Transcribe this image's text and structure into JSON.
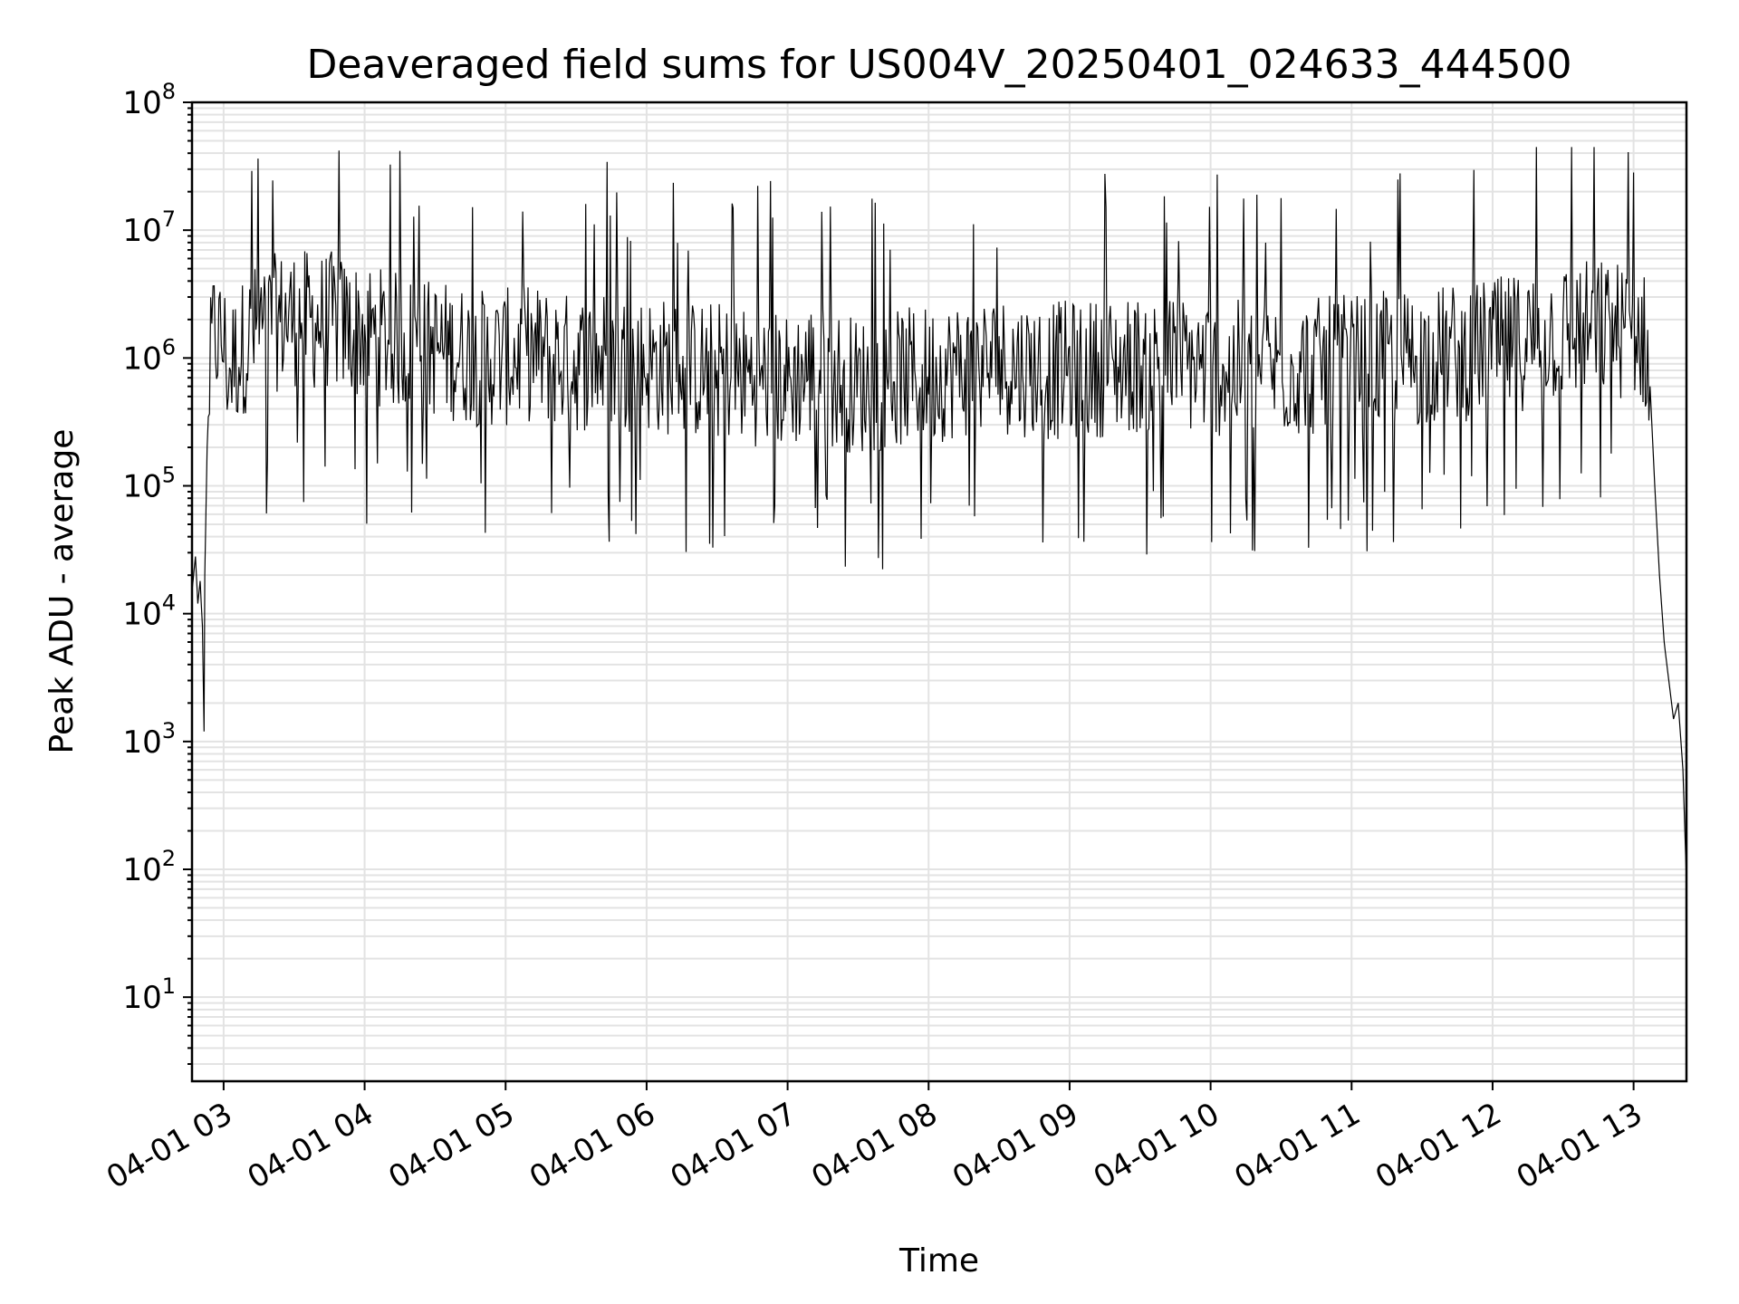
{
  "chart_data": {
    "type": "line",
    "title": "Deaveraged field sums for US004V_20250401_024633_444500",
    "xlabel": "Time",
    "ylabel": "Peak ADU - average",
    "yscale": "log",
    "ylim": [
      2.2,
      100000000
    ],
    "xlim": [
      "2025-04-01 02:46:33",
      "2025-04-01 13:22:30"
    ],
    "grid": true,
    "line_color": "#000000",
    "x_ticks": [
      "04-01 03",
      "04-01 04",
      "04-01 05",
      "04-01 06",
      "04-01 07",
      "04-01 08",
      "04-01 09",
      "04-01 10",
      "04-01 11",
      "04-01 12",
      "04-01 13"
    ],
    "y_ticks": [
      {
        "base": "10",
        "exp": "1",
        "value": 10
      },
      {
        "base": "10",
        "exp": "2",
        "value": 100
      },
      {
        "base": "10",
        "exp": "3",
        "value": 1000
      },
      {
        "base": "10",
        "exp": "4",
        "value": 10000
      },
      {
        "base": "10",
        "exp": "5",
        "value": 100000
      },
      {
        "base": "10",
        "exp": "6",
        "value": 1000000
      },
      {
        "base": "10",
        "exp": "7",
        "value": 10000000
      },
      {
        "base": "10",
        "exp": "8",
        "value": 100000000
      }
    ],
    "series": [
      {
        "x": [
          "2025-04-01 02:46:33",
          "2025-04-01 02:48:00",
          "2025-04-01 02:49:00",
          "2025-04-01 02:50:00",
          "2025-04-01 02:51:00",
          "2025-04-01 02:51:40",
          "2025-04-01 02:52:00",
          "2025-04-01 02:53:00",
          "2025-04-01 02:54:00",
          "2025-04-01 02:55:00",
          "2025-04-01 02:56:00",
          "2025-04-01 02:58:00",
          "2025-04-01 03:00:00",
          "2025-04-01 03:02:00",
          "2025-04-01 03:05:00",
          "2025-04-01 03:08:00",
          "2025-04-01 03:12:00",
          "2025-04-01 03:16:00",
          "2025-04-01 03:20:00",
          "2025-04-01 03:25:00",
          "2025-04-01 03:30:00",
          "2025-04-01 03:35:00",
          "2025-04-01 03:40:00",
          "2025-04-01 03:45:00",
          "2025-04-01 03:50:00",
          "2025-04-01 03:55:00",
          "2025-04-01 04:00:00",
          "2025-04-01 04:10:00",
          "2025-04-01 04:20:00",
          "2025-04-01 04:30:00",
          "2025-04-01 04:40:00",
          "2025-04-01 04:50:00",
          "2025-04-01 05:00:00",
          "2025-04-01 05:10:00",
          "2025-04-01 05:20:00",
          "2025-04-01 05:30:00",
          "2025-04-01 05:40:00",
          "2025-04-01 05:50:00",
          "2025-04-01 06:00:00",
          "2025-04-01 06:10:00",
          "2025-04-01 06:20:00",
          "2025-04-01 06:30:00",
          "2025-04-01 06:40:00",
          "2025-04-01 06:50:00",
          "2025-04-01 07:00:00",
          "2025-04-01 07:10:00",
          "2025-04-01 07:20:00",
          "2025-04-01 07:30:00",
          "2025-04-01 07:40:00",
          "2025-04-01 07:50:00",
          "2025-04-01 08:00:00",
          "2025-04-01 08:10:00",
          "2025-04-01 08:20:00",
          "2025-04-01 08:30:00",
          "2025-04-01 08:40:00",
          "2025-04-01 08:50:00",
          "2025-04-01 09:00:00",
          "2025-04-01 09:15:00",
          "2025-04-01 09:30:00",
          "2025-04-01 09:45:00",
          "2025-04-01 10:00:00",
          "2025-04-01 10:15:00",
          "2025-04-01 10:30:00",
          "2025-04-01 10:45:00",
          "2025-04-01 11:00:00",
          "2025-04-01 11:15:00",
          "2025-04-01 11:30:00",
          "2025-04-01 11:45:00",
          "2025-04-01 12:00:00",
          "2025-04-01 12:10:00",
          "2025-04-01 12:20:00",
          "2025-04-01 12:30:00",
          "2025-04-01 12:40:00",
          "2025-04-01 12:50:00",
          "2025-04-01 13:00:00",
          "2025-04-01 13:03:00",
          "2025-04-01 13:05:00",
          "2025-04-01 13:07:00",
          "2025-04-01 13:09:00",
          "2025-04-01 13:11:00",
          "2025-04-01 13:13:00",
          "2025-04-01 13:15:00",
          "2025-04-01 13:17:00",
          "2025-04-01 13:19:00",
          "2025-04-01 13:21:00",
          "2025-04-01 13:22:30"
        ],
        "y": [
          15000,
          28000,
          12000,
          18000,
          8000,
          1200,
          20000,
          200000,
          600000,
          1200000,
          1600000,
          1400000,
          1300000,
          800000,
          1000000,
          1200000,
          1500000,
          1700000,
          1800000,
          2000000,
          2100000,
          2000000,
          1900000,
          2000000,
          1800000,
          1700000,
          1600000,
          1400000,
          1300000,
          1200000,
          1100000,
          1000000,
          1000000,
          1100000,
          1000000,
          900000,
          1000000,
          950000,
          900000,
          850000,
          800000,
          800000,
          750000,
          700000,
          650000,
          800000,
          700000,
          600000,
          650000,
          700000,
          750000,
          800000,
          850000,
          900000,
          850000,
          800000,
          800000,
          850000,
          900000,
          900000,
          850000,
          800000,
          820000,
          850000,
          900000,
          950000,
          1000000,
          1100000,
          1200000,
          1300000,
          1500000,
          1600000,
          1700000,
          1700000,
          1600000,
          1500000,
          1300000,
          600000,
          100000,
          20000,
          6000,
          3000,
          1500,
          2000,
          600,
          80
        ]
      }
    ]
  }
}
